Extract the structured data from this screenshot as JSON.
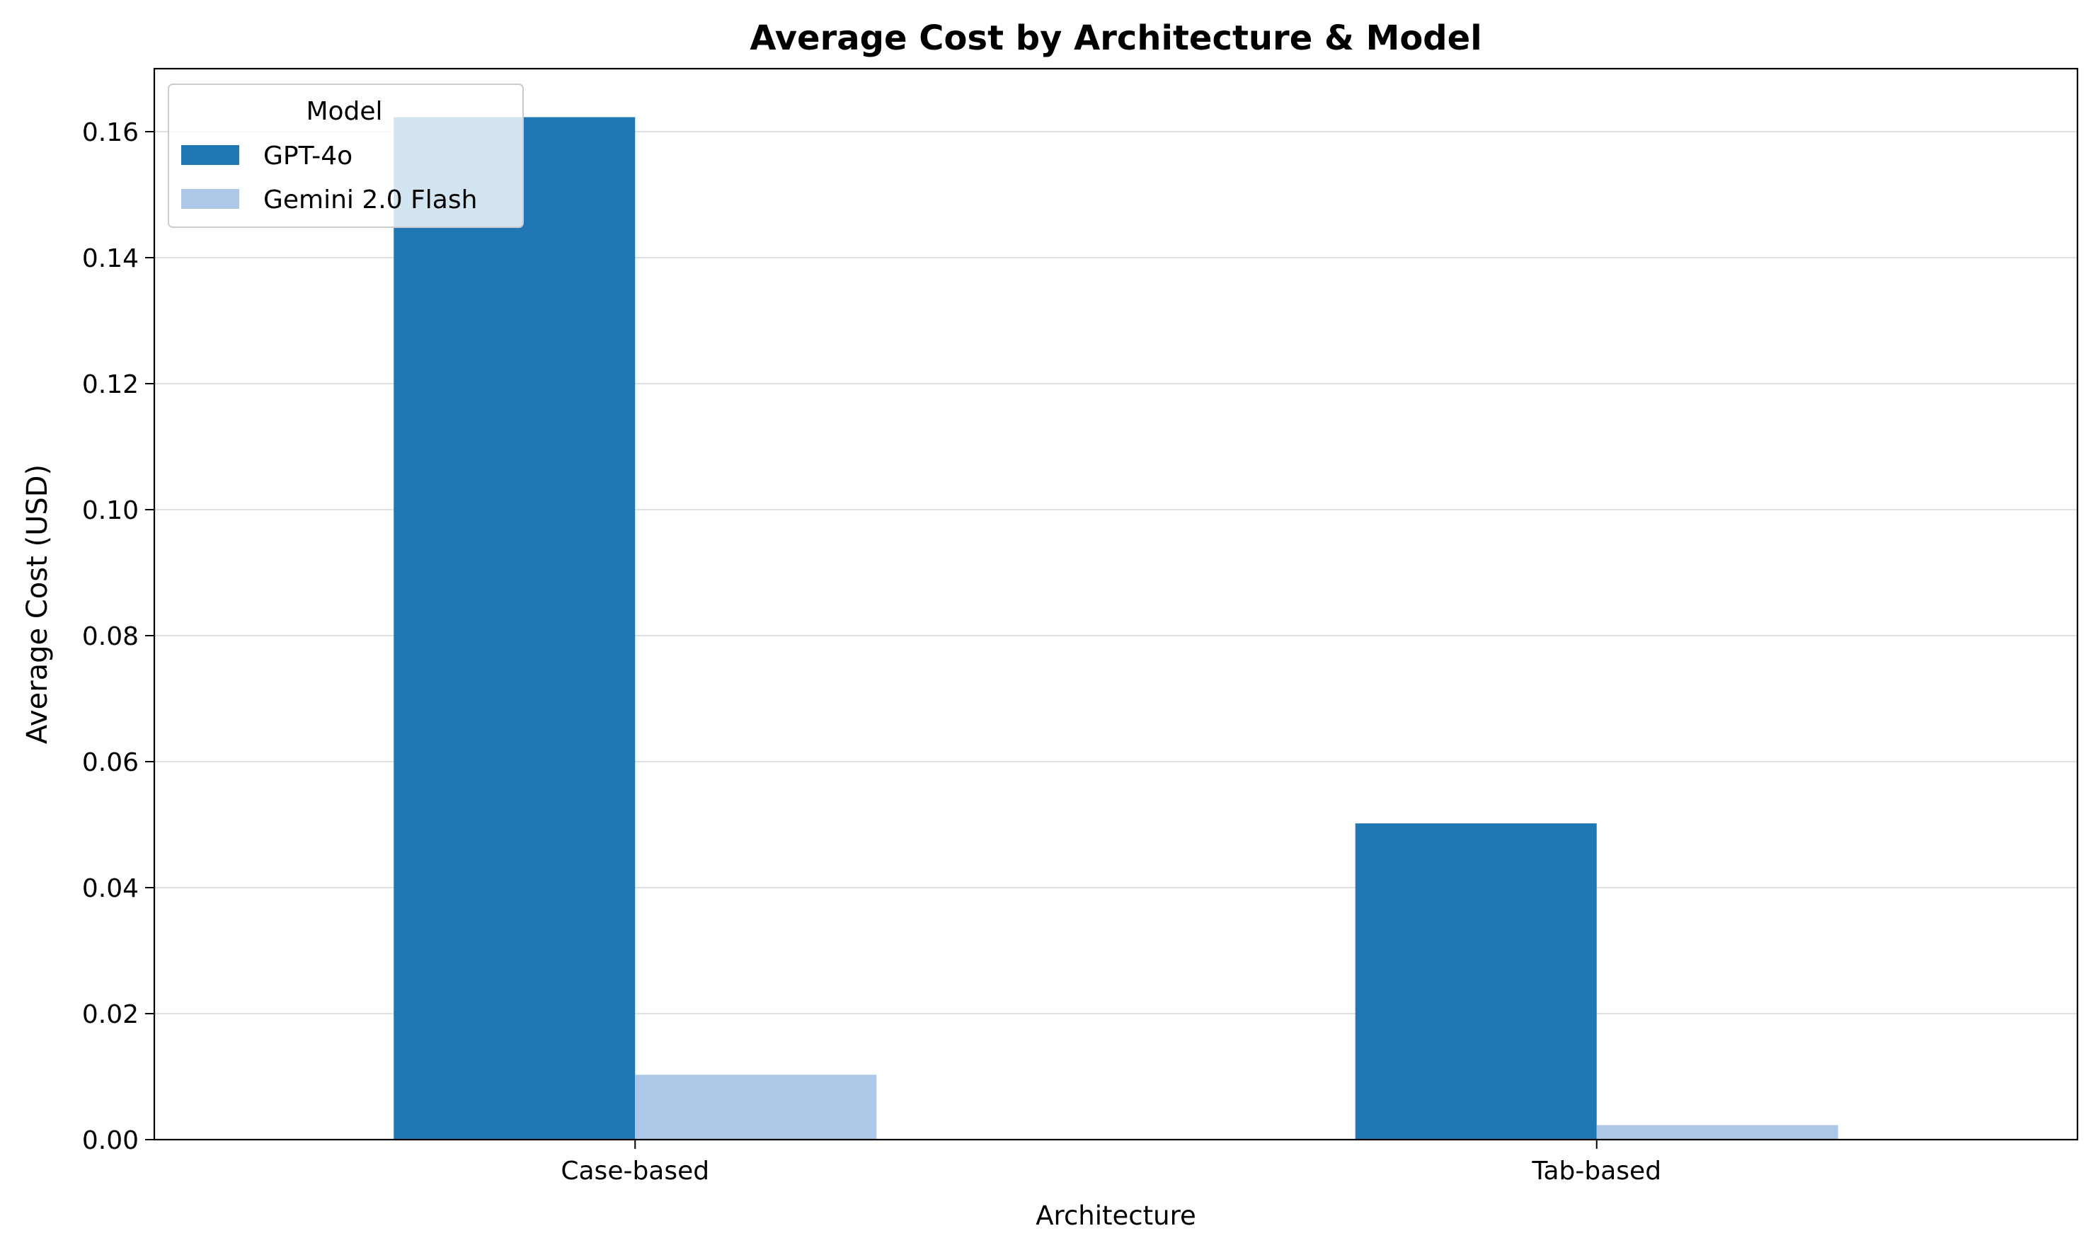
{
  "chart_data": {
    "type": "bar",
    "title": "Average Cost by Architecture & Model",
    "xlabel": "Architecture",
    "ylabel": "Average Cost (USD)",
    "categories": [
      "Case-based",
      "Tab-based"
    ],
    "series": [
      {
        "name": "GPT-4o",
        "color": "#1f77b4",
        "values": [
          0.1623,
          0.0502
        ]
      },
      {
        "name": "Gemini 2.0 Flash",
        "color": "#aec7e8",
        "values": [
          0.0103,
          0.0023
        ]
      }
    ],
    "ylim": [
      0,
      0.17
    ],
    "yticks": [
      0.0,
      0.02,
      0.04,
      0.06,
      0.08,
      0.1,
      0.12,
      0.14,
      0.16
    ],
    "ytick_labels": [
      "0.00",
      "0.02",
      "0.04",
      "0.06",
      "0.08",
      "0.10",
      "0.12",
      "0.14",
      "0.16"
    ],
    "grid": "y",
    "legend": {
      "title": "Model",
      "placement": "upper left"
    }
  }
}
